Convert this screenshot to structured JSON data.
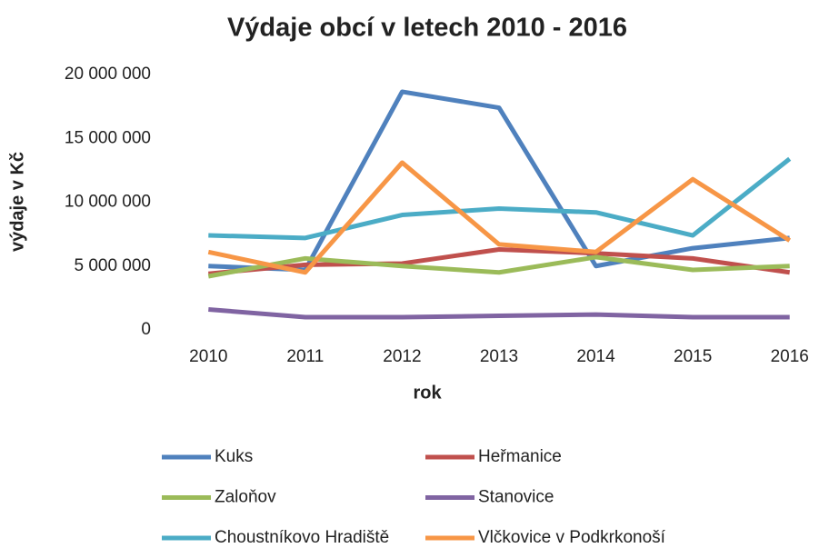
{
  "chart_data": {
    "type": "line",
    "title": "Výdaje obcí v letech 2010 - 2016",
    "x_label": "rok",
    "y_label": "výdaje v Kč",
    "categories": [
      "2010",
      "2011",
      "2012",
      "2013",
      "2014",
      "2015",
      "2016"
    ],
    "series": [
      {
        "name": "Kuks",
        "color": "#4f81bd",
        "values": [
          5000000,
          4700000,
          18650000,
          17400000,
          5000000,
          6400000,
          7200000
        ]
      },
      {
        "name": "Heřmanice",
        "color": "#c0504d",
        "values": [
          4400000,
          5100000,
          5200000,
          6300000,
          6000000,
          5600000,
          4500000
        ]
      },
      {
        "name": "Zaloňov",
        "color": "#9bbb59",
        "values": [
          4200000,
          5600000,
          5000000,
          4500000,
          5700000,
          4700000,
          5000000
        ]
      },
      {
        "name": "Stanovice",
        "color": "#8064a2",
        "values": [
          1600000,
          1000000,
          1000000,
          1100000,
          1200000,
          1000000,
          1000000
        ]
      },
      {
        "name": "Choustníkovo Hradiště",
        "color": "#4bacc6",
        "values": [
          7400000,
          7200000,
          9000000,
          9500000,
          9200000,
          7400000,
          13400000
        ]
      },
      {
        "name": "Vlčkovice v Podkrkonoší",
        "color": "#f79646",
        "values": [
          6100000,
          4500000,
          13100000,
          6700000,
          6100000,
          11800000,
          7000000
        ]
      }
    ],
    "ylim": [
      0,
      20000000
    ],
    "yticks": [
      0,
      {
        "value": 5000000,
        "label": "5 000 000"
      },
      {
        "value": 10000000,
        "label": "10 000 000"
      },
      {
        "value": 15000000,
        "label": "15 000 000"
      },
      {
        "value": 20000000,
        "label": "20 000 000"
      }
    ],
    "grid": false,
    "legend": "bottom"
  }
}
